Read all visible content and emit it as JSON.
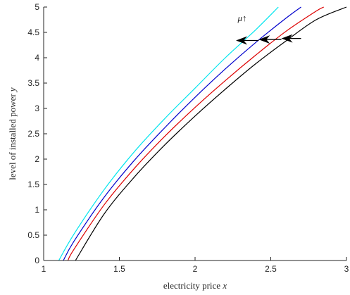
{
  "chart_data": {
    "type": "line",
    "title": "",
    "xlabel": "electricity price",
    "xlabel_var": "x",
    "ylabel": "level of installed power",
    "ylabel_var": "y",
    "xlim": [
      1,
      3
    ],
    "ylim": [
      0,
      5
    ],
    "xticks": [
      "1",
      "1.5",
      "2",
      "2.5",
      "3"
    ],
    "yticks": [
      "0",
      "0.5",
      "1",
      "1.5",
      "2",
      "2.5",
      "3",
      "3.5",
      "4",
      "4.5",
      "5"
    ],
    "grid": false,
    "legend": "none",
    "series": [
      {
        "color": "#00e5ee",
        "x": [
          1.1,
          1.2,
          1.4,
          1.6,
          1.8,
          2.0,
          2.2,
          2.4,
          2.55
        ],
        "y": [
          0.0,
          0.52,
          1.4,
          2.15,
          2.8,
          3.4,
          4.0,
          4.55,
          5.0
        ]
      },
      {
        "color": "#0000cc",
        "x": [
          1.13,
          1.2,
          1.4,
          1.6,
          1.8,
          2.0,
          2.2,
          2.4,
          2.6,
          2.7
        ],
        "y": [
          0.0,
          0.38,
          1.25,
          1.98,
          2.62,
          3.22,
          3.78,
          4.3,
          4.78,
          5.0
        ]
      },
      {
        "color": "#dd0000",
        "x": [
          1.16,
          1.2,
          1.4,
          1.6,
          1.8,
          2.0,
          2.2,
          2.4,
          2.6,
          2.8,
          2.85
        ],
        "y": [
          0.0,
          0.22,
          1.1,
          1.82,
          2.45,
          3.02,
          3.55,
          4.05,
          4.52,
          4.92,
          5.0
        ]
      },
      {
        "color": "#000000",
        "x": [
          1.21,
          1.4,
          1.6,
          1.8,
          2.0,
          2.2,
          2.4,
          2.6,
          2.8,
          3.0
        ],
        "y": [
          0.0,
          0.92,
          1.65,
          2.28,
          2.85,
          3.38,
          3.88,
          4.33,
          4.75,
          5.0
        ]
      }
    ],
    "annotation": {
      "text": "μ↑",
      "x": 2.3,
      "y": 4.78
    },
    "arrows": [
      {
        "from": [
          2.7,
          4.38
        ],
        "to": [
          2.57,
          4.38
        ]
      },
      {
        "from": [
          2.57,
          4.36
        ],
        "to": [
          2.42,
          4.36
        ]
      },
      {
        "from": [
          2.42,
          4.34
        ],
        "to": [
          2.27,
          4.34
        ]
      }
    ]
  }
}
